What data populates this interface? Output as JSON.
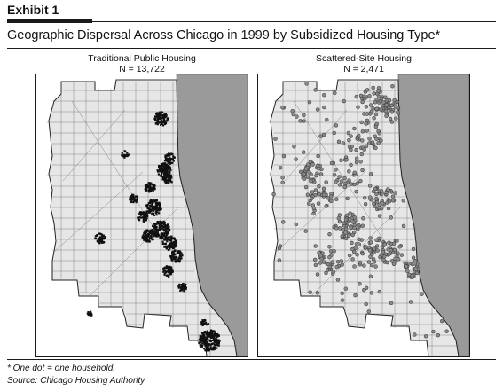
{
  "exhibit": {
    "label": "Exhibit 1"
  },
  "figure": {
    "title": "Geographic Dispersal Across Chicago in 1999 by Subsidized Housing Type*"
  },
  "maps": [
    {
      "title": "Traditional Public Housing",
      "count": "N = 13,722",
      "marker_style": "solid-black-dots"
    },
    {
      "title": "Scattered-Site Housing",
      "count": "N = 2,471",
      "marker_style": "gray-circle-dots"
    }
  ],
  "footnotes": {
    "note": "* One dot = one household.",
    "source": "Source: Chicago Housing Authority"
  },
  "colors": {
    "land": "#e6e6e6",
    "lake": "#9a9a9a",
    "streets": "#5a5a5a",
    "dots_public": "#111111",
    "dots_scattered": "#8a8a8a"
  }
}
